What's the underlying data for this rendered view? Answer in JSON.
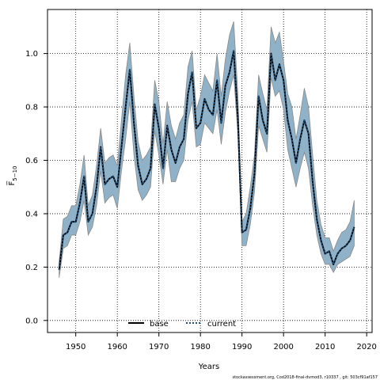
{
  "chart_data": {
    "type": "line",
    "xlabel": "Years",
    "ylabel": "F̅",
    "ylabel_sub": "5−10",
    "xlim": [
      1943.2,
      2021.3
    ],
    "ylim": [
      -0.045,
      1.165
    ],
    "x_ticks": [
      1950,
      1960,
      1970,
      1980,
      1990,
      2000,
      2010,
      2020
    ],
    "y_ticks": [
      0.0,
      0.2,
      0.4,
      0.6,
      0.8,
      1.0
    ],
    "y_tick_labels": [
      "0.0",
      "0.2",
      "0.4",
      "0.6",
      "0.8",
      "1.0"
    ],
    "grid": true,
    "legend_placement": "bottom-center",
    "footer": "stockassessment.org, Cod2018-final-dvmod3, r10337 , git: 503cf91af157",
    "colors": {
      "band_fill": "#8fb2c8",
      "band_edge": "#8a8a8a",
      "base_line": "#000000",
      "current_line": "#1f4e79"
    },
    "series": [
      {
        "name": "base",
        "style": "solid",
        "x": [
          1946,
          1947,
          1948,
          1949,
          1950,
          1951,
          1952,
          1953,
          1954,
          1955,
          1956,
          1957,
          1958,
          1959,
          1960,
          1961,
          1962,
          1963,
          1964,
          1965,
          1966,
          1967,
          1968,
          1969,
          1970,
          1971,
          1972,
          1973,
          1974,
          1975,
          1976,
          1977,
          1978,
          1979,
          1980,
          1981,
          1982,
          1983,
          1984,
          1985,
          1986,
          1987,
          1988,
          1989,
          1990,
          1991,
          1992,
          1993,
          1994,
          1995,
          1996,
          1997,
          1998,
          1999,
          2000,
          2001,
          2002,
          2003,
          2004,
          2005,
          2006,
          2007,
          2008,
          2009,
          2010,
          2011,
          2012,
          2013,
          2014,
          2015,
          2016,
          2017
        ],
        "y": [
          0.19,
          0.32,
          0.33,
          0.37,
          0.37,
          0.44,
          0.54,
          0.37,
          0.4,
          0.5,
          0.65,
          0.51,
          0.53,
          0.54,
          0.5,
          0.65,
          0.8,
          0.94,
          0.74,
          0.58,
          0.51,
          0.53,
          0.57,
          0.81,
          0.72,
          0.57,
          0.73,
          0.64,
          0.59,
          0.65,
          0.68,
          0.85,
          0.93,
          0.72,
          0.74,
          0.83,
          0.79,
          0.77,
          0.9,
          0.74,
          0.88,
          0.93,
          1.01,
          0.76,
          0.33,
          0.34,
          0.42,
          0.55,
          0.84,
          0.75,
          0.7,
          1.0,
          0.9,
          0.96,
          0.9,
          0.75,
          0.68,
          0.59,
          0.68,
          0.75,
          0.7,
          0.52,
          0.38,
          0.3,
          0.25,
          0.26,
          0.21,
          0.25,
          0.27,
          0.28,
          0.3,
          0.35
        ]
      },
      {
        "name": "current",
        "style": "dotted",
        "x": [
          1946,
          1947,
          1948,
          1949,
          1950,
          1951,
          1952,
          1953,
          1954,
          1955,
          1956,
          1957,
          1958,
          1959,
          1960,
          1961,
          1962,
          1963,
          1964,
          1965,
          1966,
          1967,
          1968,
          1969,
          1970,
          1971,
          1972,
          1973,
          1974,
          1975,
          1976,
          1977,
          1978,
          1979,
          1980,
          1981,
          1982,
          1983,
          1984,
          1985,
          1986,
          1987,
          1988,
          1989,
          1990,
          1991,
          1992,
          1993,
          1994,
          1995,
          1996,
          1997,
          1998,
          1999,
          2000,
          2001,
          2002,
          2003,
          2004,
          2005,
          2006,
          2007,
          2008,
          2009,
          2010,
          2011,
          2012,
          2013,
          2014,
          2015,
          2016,
          2017
        ],
        "y": [
          0.19,
          0.32,
          0.33,
          0.37,
          0.37,
          0.44,
          0.54,
          0.37,
          0.4,
          0.5,
          0.65,
          0.51,
          0.53,
          0.54,
          0.5,
          0.65,
          0.8,
          0.94,
          0.74,
          0.58,
          0.51,
          0.53,
          0.57,
          0.81,
          0.72,
          0.57,
          0.73,
          0.64,
          0.59,
          0.65,
          0.68,
          0.85,
          0.93,
          0.72,
          0.74,
          0.83,
          0.79,
          0.77,
          0.9,
          0.74,
          0.88,
          0.93,
          1.01,
          0.76,
          0.33,
          0.34,
          0.42,
          0.55,
          0.84,
          0.75,
          0.7,
          1.0,
          0.9,
          0.96,
          0.9,
          0.75,
          0.68,
          0.59,
          0.68,
          0.75,
          0.7,
          0.52,
          0.38,
          0.3,
          0.25,
          0.26,
          0.21,
          0.25,
          0.27,
          0.28,
          0.3,
          0.35
        ]
      }
    ],
    "confidence_band": {
      "x": [
        1946,
        1947,
        1948,
        1949,
        1950,
        1951,
        1952,
        1953,
        1954,
        1955,
        1956,
        1957,
        1958,
        1959,
        1960,
        1961,
        1962,
        1963,
        1964,
        1965,
        1966,
        1967,
        1968,
        1969,
        1970,
        1971,
        1972,
        1973,
        1974,
        1975,
        1976,
        1977,
        1978,
        1979,
        1980,
        1981,
        1982,
        1983,
        1984,
        1985,
        1986,
        1987,
        1988,
        1989,
        1990,
        1991,
        1992,
        1993,
        1994,
        1995,
        1996,
        1997,
        1998,
        1999,
        2000,
        2001,
        2002,
        2003,
        2004,
        2005,
        2006,
        2007,
        2008,
        2009,
        2010,
        2011,
        2012,
        2013,
        2014,
        2015,
        2016,
        2017
      ],
      "lower": [
        0.16,
        0.27,
        0.28,
        0.32,
        0.32,
        0.37,
        0.45,
        0.32,
        0.35,
        0.43,
        0.56,
        0.44,
        0.46,
        0.47,
        0.42,
        0.56,
        0.68,
        0.82,
        0.62,
        0.49,
        0.45,
        0.47,
        0.5,
        0.71,
        0.62,
        0.51,
        0.64,
        0.52,
        0.52,
        0.57,
        0.6,
        0.75,
        0.82,
        0.65,
        0.66,
        0.74,
        0.72,
        0.7,
        0.79,
        0.66,
        0.78,
        0.86,
        0.92,
        0.7,
        0.28,
        0.28,
        0.36,
        0.48,
        0.73,
        0.68,
        0.63,
        0.91,
        0.84,
        0.86,
        0.79,
        0.64,
        0.57,
        0.5,
        0.57,
        0.63,
        0.57,
        0.43,
        0.32,
        0.25,
        0.21,
        0.21,
        0.18,
        0.21,
        0.22,
        0.23,
        0.24,
        0.28
      ],
      "upper": [
        0.22,
        0.38,
        0.39,
        0.43,
        0.43,
        0.51,
        0.62,
        0.43,
        0.47,
        0.58,
        0.72,
        0.59,
        0.61,
        0.62,
        0.58,
        0.75,
        0.92,
        1.04,
        0.84,
        0.67,
        0.6,
        0.62,
        0.65,
        0.9,
        0.82,
        0.66,
        0.82,
        0.73,
        0.68,
        0.74,
        0.77,
        0.95,
        1.01,
        0.79,
        0.84,
        0.92,
        0.89,
        0.86,
        1.0,
        0.84,
        0.98,
        1.07,
        1.12,
        0.85,
        0.37,
        0.4,
        0.5,
        0.62,
        0.92,
        0.85,
        0.79,
        1.1,
        1.04,
        1.08,
        0.97,
        0.85,
        0.8,
        0.68,
        0.77,
        0.87,
        0.8,
        0.62,
        0.45,
        0.36,
        0.31,
        0.31,
        0.26,
        0.3,
        0.33,
        0.34,
        0.37,
        0.45
      ]
    }
  }
}
